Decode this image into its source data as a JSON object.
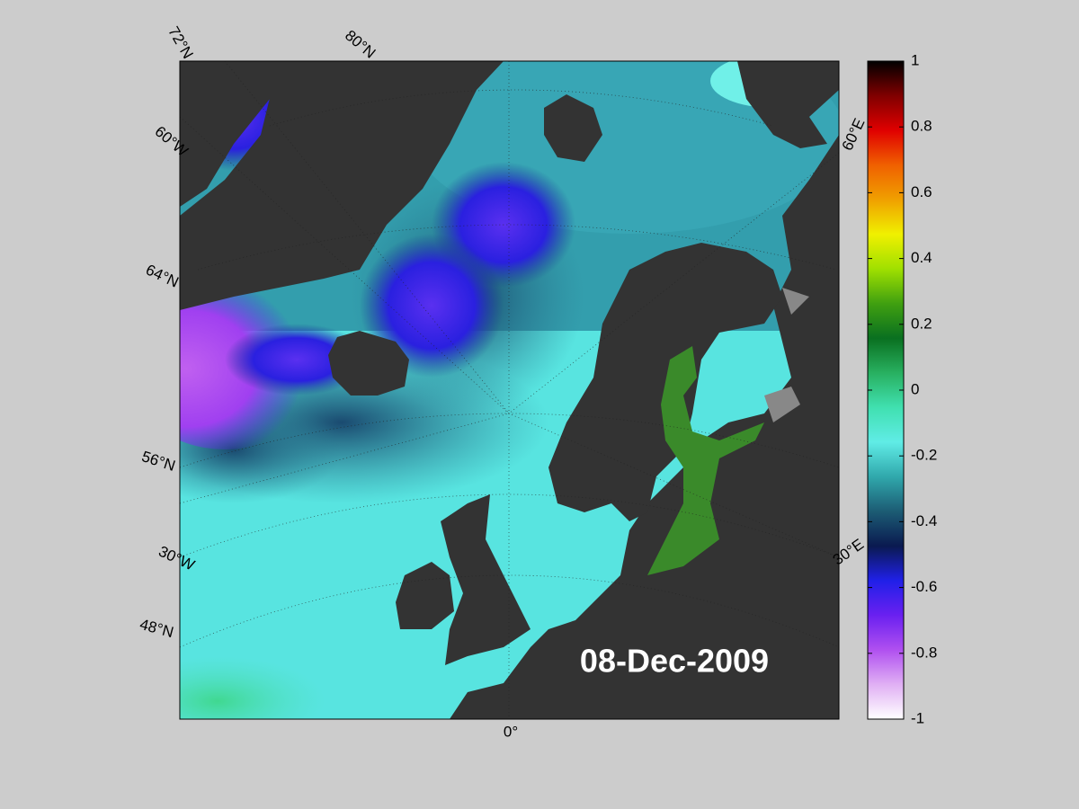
{
  "map": {
    "date_label": "08-Dec-2009",
    "graticule_labels": [
      "72°N",
      "80°N",
      "60°W",
      "64°N",
      "56°N",
      "30°W",
      "48°N",
      "0°",
      "60°E",
      "30°E"
    ]
  },
  "colorbar": {
    "lim": [
      -1,
      1
    ],
    "ticks": [
      1,
      0.8,
      0.6,
      0.4,
      0.2,
      0,
      -0.2,
      -0.4,
      -0.6,
      -0.8,
      -1
    ],
    "colors": [
      "#ffffff",
      "#e0b0f4",
      "#b050f0",
      "#6a20f0",
      "#2020e8",
      "#0a1a50",
      "#1c5c74",
      "#30a8ac",
      "#60ece6",
      "#40e0b0",
      "#28b060",
      "#0a7020",
      "#40a010",
      "#a0e000",
      "#f0f000",
      "#f0a000",
      "#f06000",
      "#e00000",
      "#800000",
      "#000000"
    ]
  }
}
